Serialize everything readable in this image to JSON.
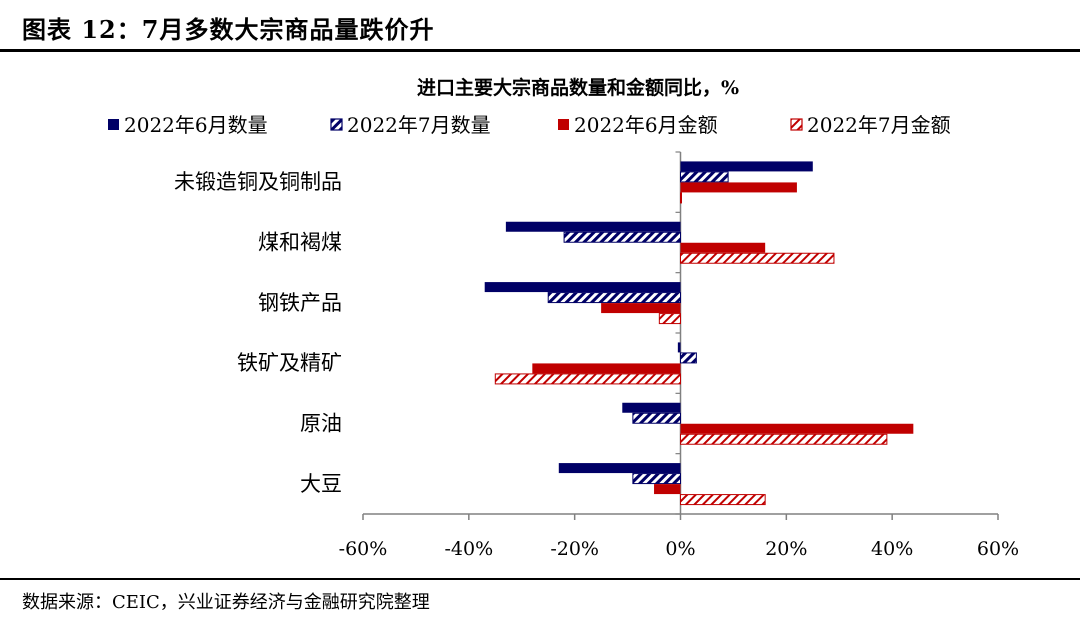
{
  "figure": {
    "title": "图表 12：7月多数大宗商品量跌价升",
    "source": "数据来源：CEIC，兴业证券经济与金融研究院整理"
  },
  "chart_data": {
    "type": "bar",
    "orientation": "horizontal",
    "title": "进口主要大宗商品数量和金额同比，%",
    "categories": [
      "未锻造铜及铜制品",
      "煤和褐煤",
      "钢铁产品",
      "铁矿及精矿",
      "原油",
      "大豆"
    ],
    "series": [
      {
        "name": "2022年6月数量",
        "values": [
          25,
          -33,
          -37,
          -0.5,
          -11,
          -23
        ],
        "color": "#000066",
        "pattern": "solid"
      },
      {
        "name": "2022年7月数量",
        "values": [
          9,
          -22,
          -25,
          3,
          -9,
          -9
        ],
        "color": "#000066",
        "pattern": "hatch"
      },
      {
        "name": "2022年6月金额",
        "values": [
          22,
          16,
          -15,
          -28,
          44,
          -5
        ],
        "color": "#c00000",
        "pattern": "solid"
      },
      {
        "name": "2022年7月金额",
        "values": [
          0,
          29,
          -4,
          -35,
          39,
          16
        ],
        "color": "#c00000",
        "pattern": "hatch"
      }
    ],
    "xlim": [
      -60,
      60
    ],
    "xticks": [
      -60,
      -40,
      -20,
      0,
      20,
      40,
      60
    ],
    "tick_labels": [
      "-60%",
      "-40%",
      "-20%",
      "0%",
      "20%",
      "40%",
      "60%"
    ],
    "legend": "top"
  }
}
